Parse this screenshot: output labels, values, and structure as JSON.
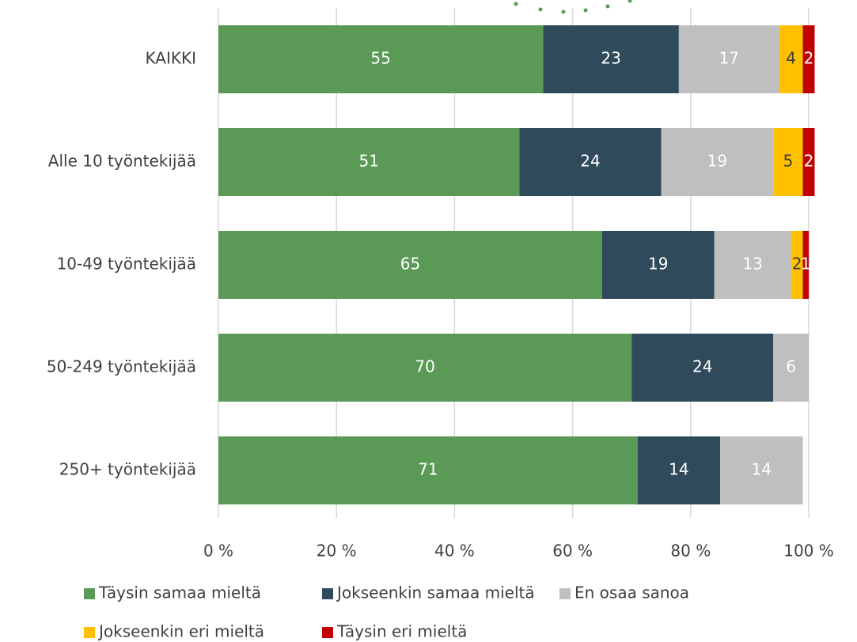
{
  "chart_data": {
    "type": "stacked_barh",
    "categories": [
      "KAIKKI",
      "Alle 10 työntekijää",
      "10-49 työntekijää",
      "50-249 työntekijää",
      "250+ työntekijää"
    ],
    "series": [
      {
        "name": "Täysin samaa mieltä",
        "color": "#5b9a56",
        "values": [
          55,
          51,
          65,
          70,
          71
        ]
      },
      {
        "name": "Jokseenkin samaa mieltä",
        "color": "#2e4a5b",
        "values": [
          23,
          24,
          19,
          24,
          14
        ]
      },
      {
        "name": "En osaa sanoa",
        "color": "#bfbfbf",
        "values": [
          17,
          19,
          13,
          6,
          14
        ]
      },
      {
        "name": "Jokseenkin eri mieltä",
        "color": "#ffc000",
        "values": [
          4,
          5,
          2,
          null,
          null
        ]
      },
      {
        "name": "Täysin eri mieltä",
        "color": "#c00000",
        "values": [
          2,
          2,
          1,
          null,
          null
        ]
      }
    ],
    "xlim": [
      0,
      100
    ],
    "xticks": [
      {
        "value": 0,
        "label": "0 %"
      },
      {
        "value": 20,
        "label": "20 %"
      },
      {
        "value": 40,
        "label": "40 %"
      },
      {
        "value": 60,
        "label": "60 %"
      },
      {
        "value": 80,
        "label": "80 %"
      },
      {
        "value": 100,
        "label": "100 %"
      }
    ],
    "grid": true,
    "legend": "bottom"
  }
}
